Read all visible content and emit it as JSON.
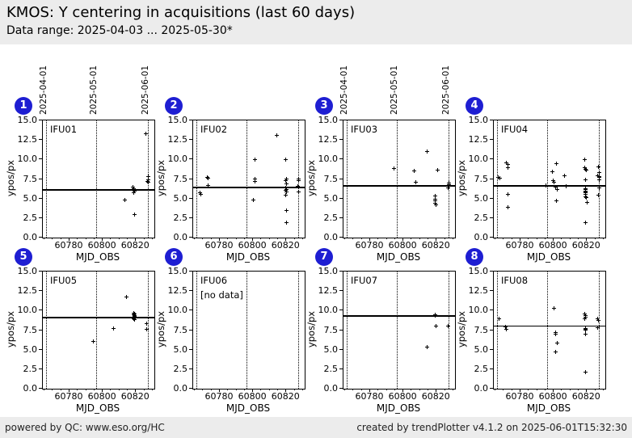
{
  "header": {
    "title": "KMOS: Y centering in acquisitions (last 60 days)",
    "subtitle": "Data range: 2025-04-03 ... 2025-05-30*"
  },
  "footer": {
    "left": "powered by QC: www.eso.org/HC",
    "right": "created by trendPlotter v4.1.2 on 2025-06-01T15:32:30"
  },
  "colors": {
    "badge_blue": "#1e1ed2",
    "marker_black": "#000000",
    "band_gray": "#ececec"
  },
  "chart_data": {
    "type": "scatter",
    "xlabel": "MJD_OBS",
    "ylabel": "ypos/px",
    "xlim": [
      60764,
      60831
    ],
    "ylim": [
      0,
      15
    ],
    "xticks": [
      60780,
      60800,
      60820
    ],
    "yticks": [
      0.0,
      2.5,
      5.0,
      7.5,
      10.0,
      12.5,
      15.0
    ],
    "grid": "dotted month lines only",
    "month_lines": [
      {
        "label": "2025-04-01",
        "mjd": 60766
      },
      {
        "label": "2025-05-01",
        "mjd": 60796
      },
      {
        "label": "2025-06-01",
        "mjd": 60827
      }
    ],
    "date_labels_above_panels": [
      1,
      3
    ],
    "panels": [
      {
        "number": 1,
        "label": "IFU01",
        "no_data": false,
        "ref_line": 6.1,
        "points": [
          [
            60813,
            4.9
          ],
          [
            60818,
            6.5
          ],
          [
            60818.5,
            6.35
          ],
          [
            60818.5,
            6.15
          ],
          [
            60819,
            6.0
          ],
          [
            60818.5,
            5.8
          ],
          [
            60819,
            3.0
          ],
          [
            60825.5,
            13.3
          ],
          [
            60827,
            7.9
          ],
          [
            60827,
            7.5
          ],
          [
            60826.5,
            7.25
          ],
          [
            60827,
            7.1
          ]
        ]
      },
      {
        "number": 2,
        "label": "IFU02",
        "no_data": false,
        "ref_line": 6.4,
        "points": [
          [
            60768,
            5.85
          ],
          [
            60768.5,
            5.6
          ],
          [
            60772,
            7.8
          ],
          [
            60772.5,
            7.65
          ],
          [
            60772.5,
            6.7
          ],
          [
            60800,
            4.9
          ],
          [
            60801,
            10.0
          ],
          [
            60801,
            7.6
          ],
          [
            60801,
            7.2
          ],
          [
            60814,
            13.1
          ],
          [
            60819.5,
            10.0
          ],
          [
            60820,
            7.6
          ],
          [
            60819.5,
            7.3
          ],
          [
            60820,
            6.95
          ],
          [
            60819.5,
            6.4
          ],
          [
            60820,
            6.25
          ],
          [
            60819.5,
            6.1
          ],
          [
            60820,
            5.95
          ],
          [
            60819.5,
            5.5
          ],
          [
            60820,
            3.5
          ],
          [
            60820,
            2.0
          ],
          [
            60827,
            7.6
          ],
          [
            60827,
            7.4
          ],
          [
            60826.5,
            6.6
          ],
          [
            60827,
            5.9
          ]
        ]
      },
      {
        "number": 3,
        "label": "IFU03",
        "no_data": false,
        "ref_line": 6.6,
        "points": [
          [
            60794,
            8.9
          ],
          [
            60806,
            8.55
          ],
          [
            60807,
            7.1
          ],
          [
            60814,
            11.1
          ],
          [
            60819,
            5.35
          ],
          [
            60819,
            5.0
          ],
          [
            60819,
            4.75
          ],
          [
            60819,
            4.5
          ],
          [
            60819.5,
            4.25
          ],
          [
            60820.5,
            8.65
          ],
          [
            60827,
            7.05
          ],
          [
            60827,
            6.85
          ],
          [
            60827,
            6.6
          ],
          [
            60826.5,
            6.45
          ]
        ]
      },
      {
        "number": 4,
        "label": "IFU04",
        "no_data": false,
        "ref_line": 6.6,
        "points": [
          [
            60766.5,
            7.8
          ],
          [
            60767.5,
            7.65
          ],
          [
            60771.5,
            9.6
          ],
          [
            60772,
            9.45
          ],
          [
            60772,
            9.0
          ],
          [
            60772,
            5.6
          ],
          [
            60772,
            3.9
          ],
          [
            60795,
            6.7
          ],
          [
            60799,
            8.5
          ],
          [
            60799.5,
            7.3
          ],
          [
            60800,
            7.15
          ],
          [
            60801.5,
            9.5
          ],
          [
            60801,
            6.5
          ],
          [
            60802,
            6.2
          ],
          [
            60801.5,
            4.8
          ],
          [
            60806,
            8.0
          ],
          [
            60807,
            6.6
          ],
          [
            60818.5,
            10.0
          ],
          [
            60818.5,
            9.0
          ],
          [
            60819,
            8.85
          ],
          [
            60819.5,
            8.7
          ],
          [
            60819,
            7.5
          ],
          [
            60819,
            6.35
          ],
          [
            60819,
            6.2
          ],
          [
            60819,
            6.05
          ],
          [
            60819,
            5.9
          ],
          [
            60819,
            5.75
          ],
          [
            60819,
            5.6
          ],
          [
            60819,
            5.3
          ],
          [
            60819.5,
            5.15
          ],
          [
            60820,
            4.6
          ],
          [
            60819,
            2.0
          ],
          [
            60826.5,
            9.1
          ],
          [
            60827,
            8.4
          ],
          [
            60826,
            8.0
          ],
          [
            60827,
            7.9
          ],
          [
            60827,
            7.75
          ],
          [
            60827,
            7.5
          ],
          [
            60827,
            6.4
          ],
          [
            60826.5,
            5.5
          ]
        ]
      },
      {
        "number": 5,
        "label": "IFU05",
        "no_data": false,
        "ref_line": 9.1,
        "points": [
          [
            60794,
            6.15
          ],
          [
            60806,
            7.8
          ],
          [
            60814,
            11.8
          ],
          [
            60818.5,
            9.7
          ],
          [
            60819,
            9.6
          ],
          [
            60818.5,
            9.5
          ],
          [
            60819,
            9.4
          ],
          [
            60819,
            9.3
          ],
          [
            60818.5,
            9.0
          ],
          [
            60819,
            8.9
          ],
          [
            60826,
            8.4
          ],
          [
            60826,
            7.7
          ]
        ]
      },
      {
        "number": 6,
        "label": "IFU06",
        "no_data": true,
        "note": "[no data]",
        "ref_line": null,
        "points": []
      },
      {
        "number": 7,
        "label": "IFU07",
        "no_data": false,
        "ref_line": 9.3,
        "points": [
          [
            60814,
            5.4
          ],
          [
            60819,
            9.55
          ],
          [
            60819,
            9.4
          ],
          [
            60819.5,
            8.1
          ],
          [
            60826.5,
            8.1
          ]
        ]
      },
      {
        "number": 8,
        "label": "IFU08",
        "no_data": false,
        "ref_line": 8.0,
        "points": [
          [
            60767,
            9.0
          ],
          [
            60771,
            8.0
          ],
          [
            60771.5,
            7.7
          ],
          [
            60800,
            10.4
          ],
          [
            60801,
            7.2
          ],
          [
            60801,
            7.0
          ],
          [
            60801,
            4.8
          ],
          [
            60802,
            5.9
          ],
          [
            60818.5,
            9.6
          ],
          [
            60819,
            9.45
          ],
          [
            60819,
            9.2
          ],
          [
            60818.5,
            9.0
          ],
          [
            60819,
            7.8
          ],
          [
            60819,
            7.65
          ],
          [
            60819,
            7.55
          ],
          [
            60819,
            7.0
          ],
          [
            60819,
            2.2
          ],
          [
            60826,
            9.0
          ],
          [
            60826.5,
            8.85
          ],
          [
            60826,
            7.9
          ]
        ]
      }
    ]
  }
}
